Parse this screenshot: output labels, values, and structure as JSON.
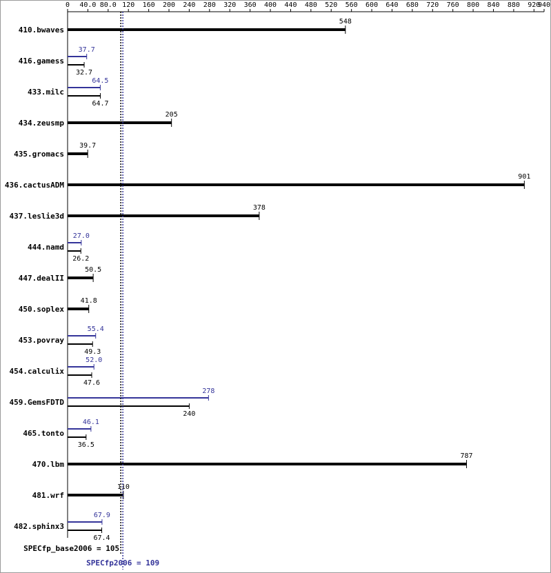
{
  "chart_data": {
    "type": "bar",
    "categories": [
      "410.bwaves",
      "416.gamess",
      "433.milc",
      "434.zeusmp",
      "435.gromacs",
      "436.cactusADM",
      "437.leslie3d",
      "444.namd",
      "447.dealII",
      "450.soplex",
      "453.povray",
      "454.calculix",
      "459.GemsFDTD",
      "465.tonto",
      "470.lbm",
      "481.wrf",
      "482.sphinx3"
    ],
    "series": [
      {
        "color": "#333399",
        "values": [
          null,
          37.7,
          64.5,
          null,
          null,
          null,
          null,
          27.0,
          null,
          null,
          55.4,
          52.0,
          278,
          46.1,
          null,
          null,
          67.9
        ],
        "value_labels": [
          null,
          "37.7",
          "64.5",
          null,
          null,
          null,
          null,
          "27.0",
          null,
          null,
          "55.4",
          "52.0",
          "278",
          "46.1",
          null,
          null,
          "67.9"
        ]
      },
      {
        "color": "#000000",
        "values": [
          548,
          32.7,
          64.7,
          205,
          39.7,
          901,
          378,
          26.2,
          50.5,
          41.8,
          49.3,
          47.6,
          240,
          36.5,
          787,
          110,
          67.4
        ]
      }
    ],
    "xlim": [
      0,
      940
    ],
    "xticks": [
      0,
      {
        "value": 40,
        "label": "40.0"
      },
      {
        "value": 80,
        "label": "80.0"
      },
      120,
      160,
      200,
      240,
      280,
      320,
      360,
      400,
      440,
      480,
      520,
      560,
      600,
      640,
      680,
      720,
      760,
      800,
      840,
      880,
      920,
      940
    ],
    "reference_lines": [
      {
        "label": "SPECfp_base2006 = 105",
        "value": 105,
        "color": "#000000"
      },
      {
        "label": "SPECfp2006 = 109",
        "value": 109,
        "color": "#333399"
      }
    ]
  }
}
